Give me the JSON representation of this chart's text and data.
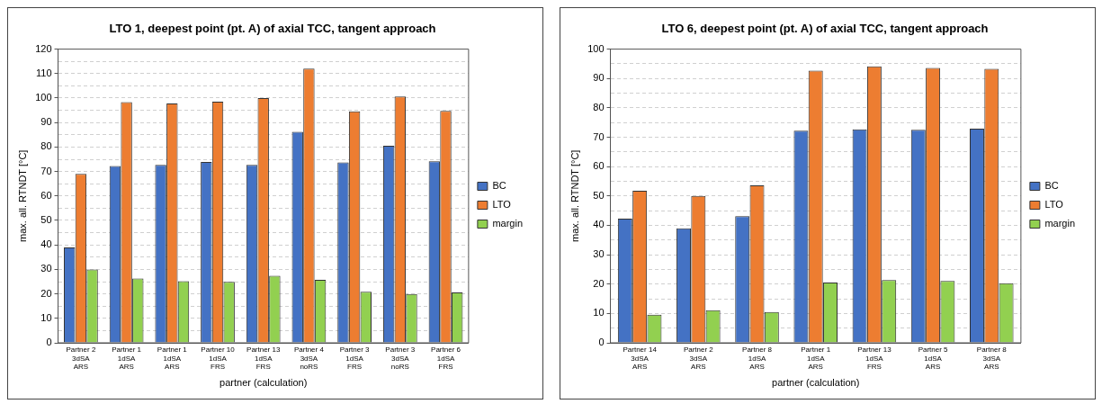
{
  "chart_data": [
    {
      "type": "bar",
      "title": "LTO 1, deepest point (pt. A) of axial TCC, tangent approach",
      "xlabel": "partner (calculation)",
      "ylabel": "max. all. RTNDT [°C]",
      "categories": [
        "Partner 2\n3dSA\nARS",
        "Partner 1\n1dSA\nARS",
        "Partner 1\n1dSA\nARS",
        "Partner 10\n1dSA\nFRS",
        "Partner 13\n1dSA\nFRS",
        "Partner 4\n3dSA\nnoRS",
        "Partner 3\n1dSA\nFRS",
        "Partner 3\n3dSA\nnoRS",
        "Partner 6\n1dSA\nFRS"
      ],
      "series": [
        {
          "name": "BC",
          "color": "#4472c4",
          "values": [
            39,
            72.2,
            72.7,
            73.9,
            72.7,
            86.2,
            73.7,
            80.5,
            74.2
          ]
        },
        {
          "name": "LTO",
          "color": "#ed7d31",
          "values": [
            69,
            98.3,
            97.8,
            98.5,
            100,
            112,
            94.6,
            100.6,
            94.8
          ]
        },
        {
          "name": "margin",
          "color": "#92d050",
          "values": [
            30,
            26.3,
            25.2,
            24.9,
            27.4,
            25.7,
            20.9,
            19.9,
            20.6
          ]
        }
      ],
      "ylim": [
        0,
        120
      ],
      "yticks": [
        0,
        {
          "value": 5,
          "label": null
        },
        10,
        {
          "value": 15,
          "label": null
        },
        20,
        {
          "value": 25,
          "label": null
        },
        30,
        {
          "value": 35,
          "label": null
        },
        40,
        {
          "value": 45,
          "label": null
        },
        50,
        {
          "value": 55,
          "label": null
        },
        60,
        {
          "value": 65,
          "label": null
        },
        70,
        {
          "value": 75,
          "label": null
        },
        80,
        {
          "value": 85,
          "label": null
        },
        90,
        {
          "value": 95,
          "label": null
        },
        100,
        {
          "value": 105,
          "label": null
        },
        110,
        {
          "value": 115,
          "label": null
        },
        120
      ],
      "grid": "y",
      "legend": "right"
    },
    {
      "type": "bar",
      "title": "LTO 6, deepest point (pt. A) of axial TCC, tangent approach",
      "xlabel": "partner (calculation)",
      "ylabel": "max. all. RTNDT [°C]",
      "categories": [
        "Partner 14\n3dSA\nARS",
        "Partner 2\n3dSA\nARS",
        "Partner 8\n1dSA\nARS",
        "Partner 1\n1dSA\nARS",
        "Partner 13\n1dSA\nFRS",
        "Partner 5\n1dSA\nARS",
        "Partner 8\n3dSA\nARS"
      ],
      "series": [
        {
          "name": "BC",
          "color": "#4472c4",
          "values": [
            42.3,
            39,
            43.1,
            72.2,
            72.7,
            72.5,
            72.9
          ]
        },
        {
          "name": "LTO",
          "color": "#ed7d31",
          "values": [
            51.8,
            50,
            53.6,
            92.7,
            94.1,
            93.6,
            93.3
          ]
        },
        {
          "name": "margin",
          "color": "#92d050",
          "values": [
            9.6,
            11.1,
            10.5,
            20.5,
            21.4,
            21.1,
            20.3
          ]
        }
      ],
      "ylim": [
        0,
        100
      ],
      "yticks": [
        0,
        {
          "value": 5,
          "label": null
        },
        10,
        {
          "value": 15,
          "label": null
        },
        20,
        {
          "value": 25,
          "label": null
        },
        30,
        {
          "value": 35,
          "label": null
        },
        40,
        {
          "value": 45,
          "label": null
        },
        50,
        {
          "value": 55,
          "label": null
        },
        60,
        {
          "value": 65,
          "label": null
        },
        70,
        {
          "value": 75,
          "label": null
        },
        80,
        {
          "value": 85,
          "label": null
        },
        90,
        {
          "value": 95,
          "label": null
        },
        100
      ],
      "grid": "y",
      "legend": "right"
    }
  ]
}
